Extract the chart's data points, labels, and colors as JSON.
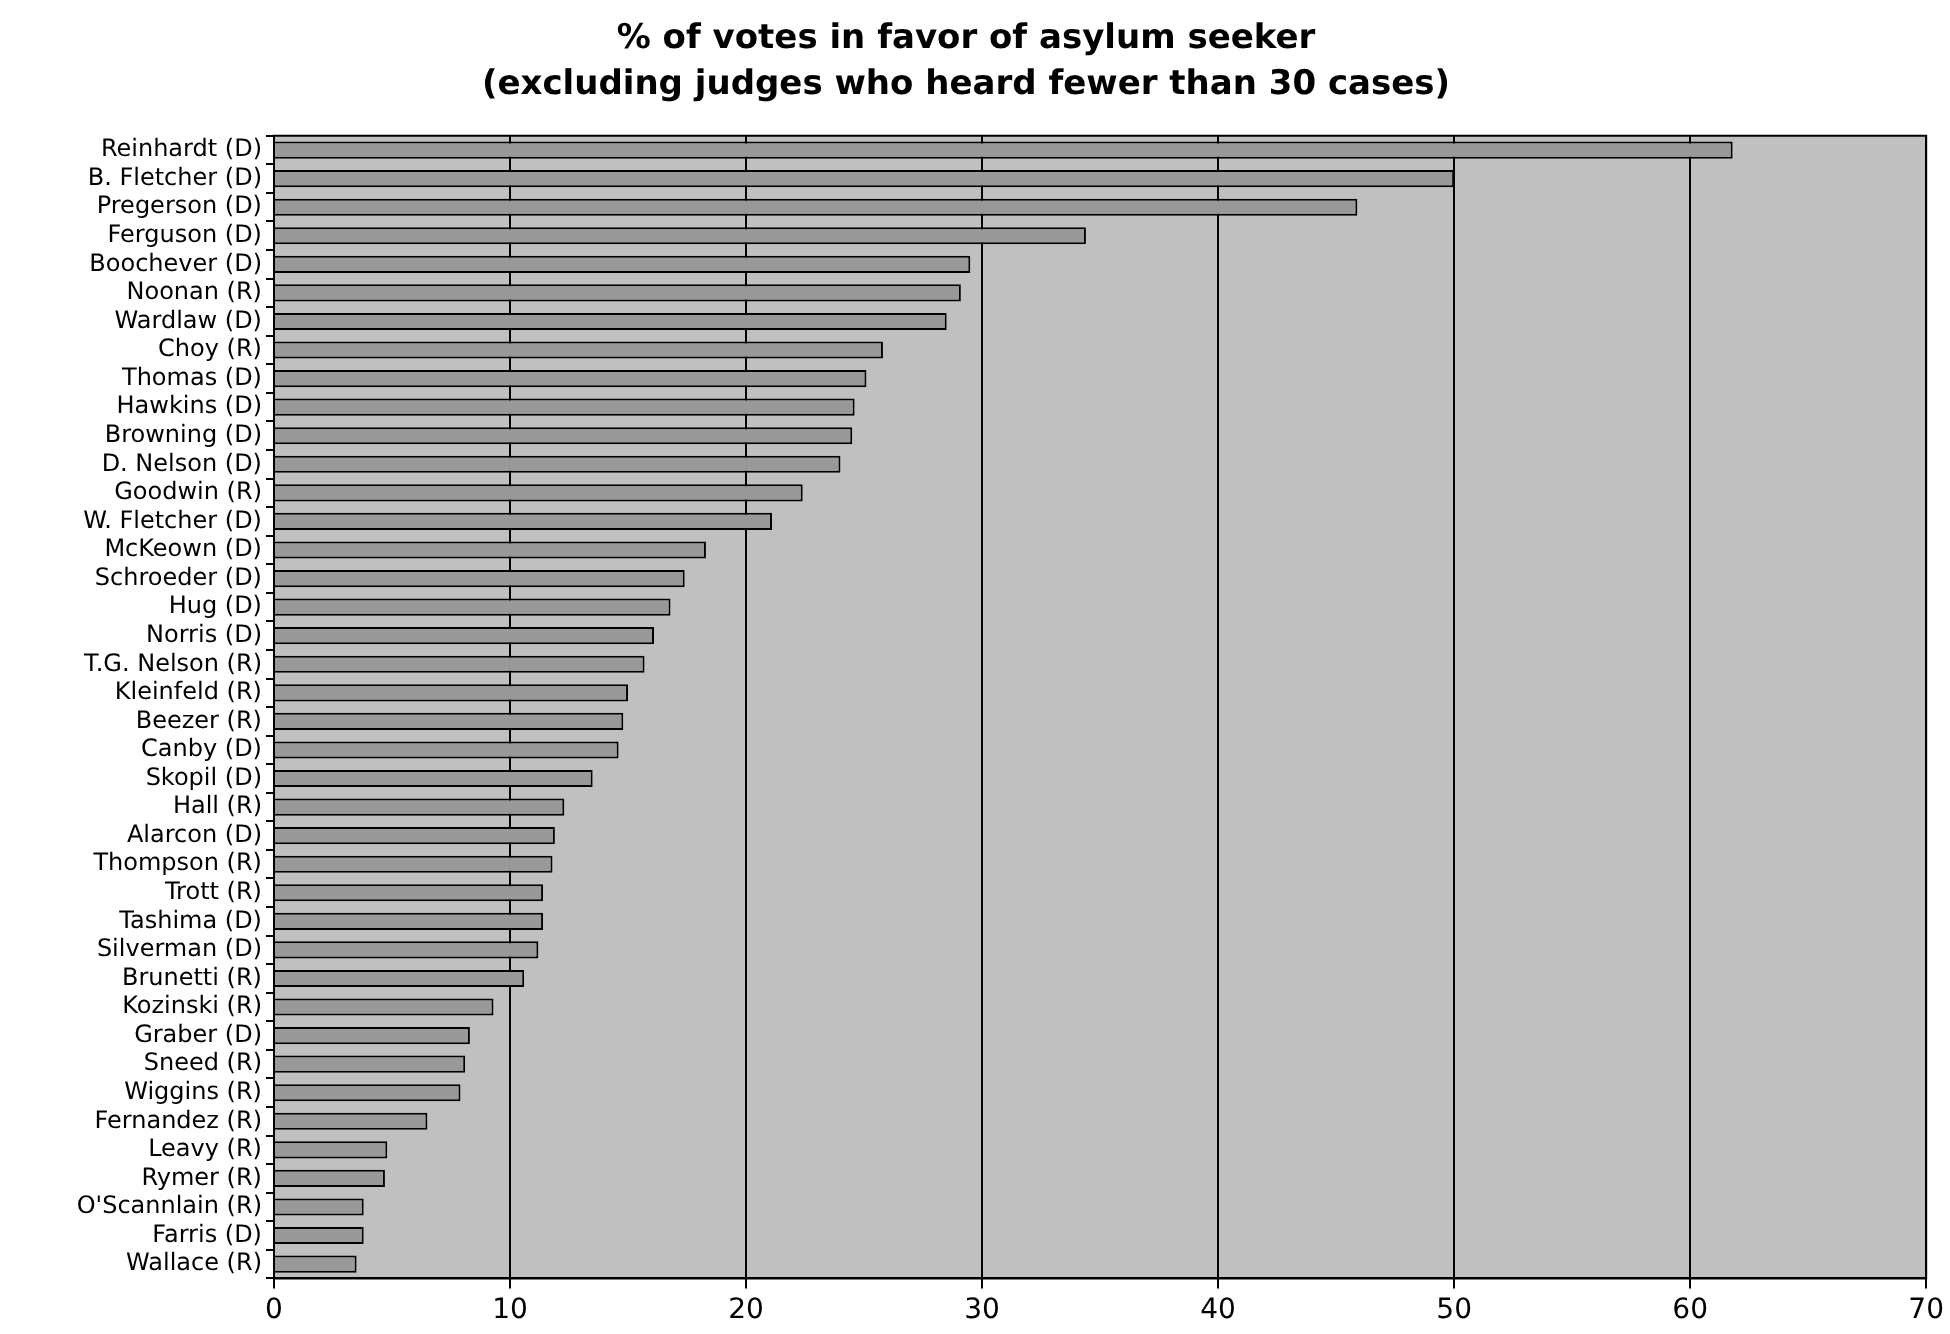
{
  "chart_data": {
    "type": "bar",
    "orientation": "horizontal",
    "title": "% of votes in favor of asylum seeker\n(excluding judges who heard fewer than 30 cases)",
    "categories": [
      "Reinhardt (D)",
      "B. Fletcher (D)",
      "Pregerson (D)",
      "Ferguson (D)",
      "Boochever (D)",
      "Noonan (R)",
      "Wardlaw (D)",
      "Choy (R)",
      "Thomas (D)",
      "Hawkins (D)",
      "Browning (D)",
      "D. Nelson (D)",
      "Goodwin (R)",
      "W. Fletcher (D)",
      "McKeown (D)",
      "Schroeder (D)",
      "Hug (D)",
      "Norris (D)",
      "T.G. Nelson (R)",
      "Kleinfeld (R)",
      "Beezer (R)",
      "Canby (D)",
      "Skopil (D)",
      "Hall (R)",
      "Alarcon (D)",
      "Thompson (R)",
      "Trott (R)",
      "Tashima (D)",
      "Silverman (D)",
      "Brunetti (R)",
      "Kozinski (R)",
      "Graber (D)",
      "Sneed (R)",
      "Wiggins (R)",
      "Fernandez (R)",
      "Leavy (R)",
      "Rymer (R)",
      "O'Scannlain (R)",
      "Farris (D)",
      "Wallace (R)"
    ],
    "values": [
      61.8,
      50.0,
      45.9,
      34.4,
      29.5,
      29.1,
      28.5,
      25.8,
      25.1,
      24.6,
      24.5,
      24.0,
      22.4,
      21.1,
      18.3,
      17.4,
      16.8,
      16.1,
      15.7,
      15.0,
      14.8,
      14.6,
      13.5,
      12.3,
      11.9,
      11.8,
      11.4,
      11.4,
      11.2,
      10.6,
      9.3,
      8.3,
      8.1,
      7.9,
      6.5,
      4.8,
      4.7,
      3.8,
      3.8,
      3.5
    ],
    "color": "#999999",
    "xlim": [
      0,
      70
    ],
    "xticks": [
      0,
      10,
      20,
      30,
      40,
      50,
      60,
      70
    ],
    "grid": "x",
    "legend": false
  }
}
